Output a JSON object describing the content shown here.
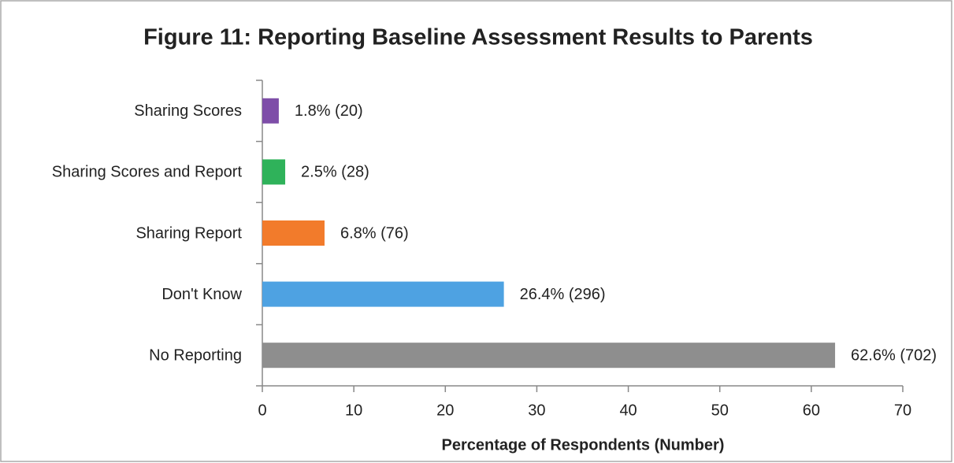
{
  "chart_data": {
    "type": "bar",
    "orientation": "horizontal",
    "title": "Figure 11: Reporting Baseline Assessment Results to Parents",
    "categories": [
      "Sharing Scores",
      "Sharing Scores and Report",
      "Sharing Report",
      "Don't Know",
      "No Reporting"
    ],
    "values": [
      1.8,
      2.5,
      6.8,
      26.4,
      62.6
    ],
    "value_labels": [
      "1.8% (20)",
      "2.5% (28)",
      "6.8% (76)",
      "26.4% (296)",
      "62.6% (702)"
    ],
    "colors": [
      "#7e4ea8",
      "#2fb25a",
      "#f27b2b",
      "#4ea2e2",
      "#8e8e8e"
    ],
    "xlabel": "Percentage of Respondents (Number)",
    "xlim": [
      0,
      70
    ],
    "xticks": [
      0,
      10,
      20,
      30,
      40,
      50,
      60,
      70
    ],
    "grid": false
  }
}
